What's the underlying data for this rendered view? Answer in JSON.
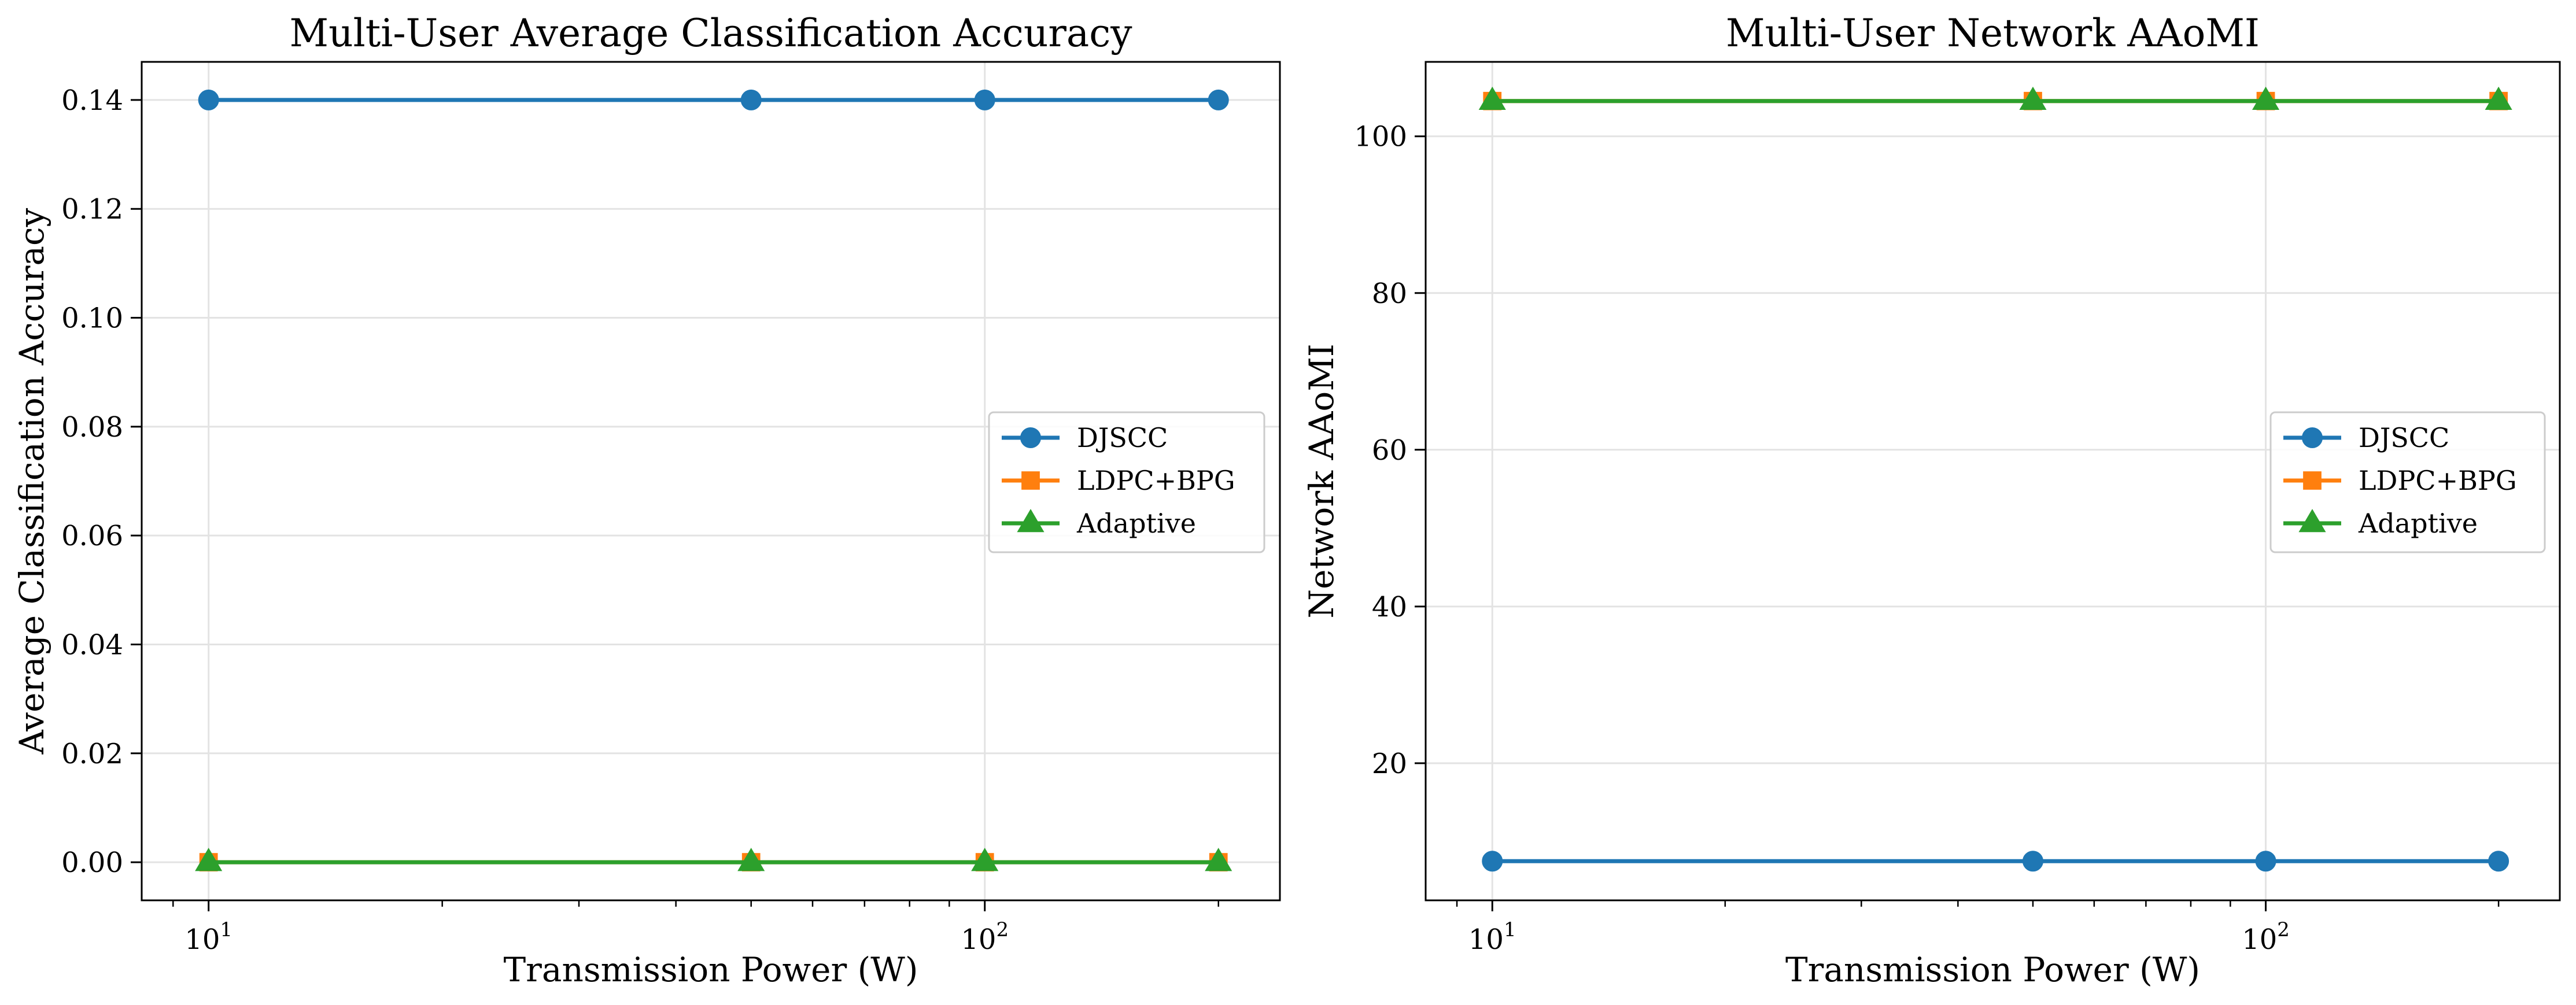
{
  "chart_data": [
    {
      "type": "line",
      "title": "Multi-User Average Classification Accuracy",
      "xlabel": "Transmission Power (W)",
      "ylabel": "Average Classification Accuracy",
      "xscale": "log",
      "xlim": [
        8.2,
        240
      ],
      "ylim": [
        -0.007,
        0.147
      ],
      "xticks": [
        {
          "value": 10,
          "label": "10",
          "exp": "1"
        },
        {
          "value": 100,
          "label": "10",
          "exp": "2"
        }
      ],
      "yticks": [
        {
          "value": 0.0,
          "label": "0.00"
        },
        {
          "value": 0.02,
          "label": "0.02"
        },
        {
          "value": 0.04,
          "label": "0.04"
        },
        {
          "value": 0.06,
          "label": "0.06"
        },
        {
          "value": 0.08,
          "label": "0.08"
        },
        {
          "value": 0.1,
          "label": "0.10"
        },
        {
          "value": 0.12,
          "label": "0.12"
        },
        {
          "value": 0.14,
          "label": "0.14"
        }
      ],
      "grid": true,
      "legend_position": "center-right",
      "x": [
        10,
        50,
        100,
        200
      ],
      "series": [
        {
          "name": "DJSCC",
          "values": [
            0.14,
            0.14,
            0.14,
            0.14
          ],
          "color": "#1f77b4",
          "marker": "circle"
        },
        {
          "name": "LDPC+BPG",
          "values": [
            0.0,
            0.0,
            0.0,
            0.0
          ],
          "color": "#ff7f0e",
          "marker": "square"
        },
        {
          "name": "Adaptive",
          "values": [
            0.0,
            0.0,
            0.0,
            0.0
          ],
          "color": "#2ca02c",
          "marker": "triangle"
        }
      ]
    },
    {
      "type": "line",
      "title": "Multi-User Network AAoMI",
      "xlabel": "Transmission Power (W)",
      "ylabel": "Network AAoMI",
      "xscale": "log",
      "xlim": [
        8.2,
        240
      ],
      "ylim": [
        2.5,
        109.5
      ],
      "xticks": [
        {
          "value": 10,
          "label": "10",
          "exp": "1"
        },
        {
          "value": 100,
          "label": "10",
          "exp": "2"
        }
      ],
      "yticks": [
        {
          "value": 20,
          "label": "20"
        },
        {
          "value": 40,
          "label": "40"
        },
        {
          "value": 60,
          "label": "60"
        },
        {
          "value": 80,
          "label": "80"
        },
        {
          "value": 100,
          "label": "100"
        }
      ],
      "grid": true,
      "legend_position": "center-right",
      "x": [
        10,
        50,
        100,
        200
      ],
      "series": [
        {
          "name": "DJSCC",
          "values": [
            7.5,
            7.5,
            7.5,
            7.5
          ],
          "color": "#1f77b4",
          "marker": "circle"
        },
        {
          "name": "LDPC+BPG",
          "values": [
            104.5,
            104.5,
            104.5,
            104.5
          ],
          "color": "#ff7f0e",
          "marker": "square"
        },
        {
          "name": "Adaptive",
          "values": [
            104.5,
            104.5,
            104.5,
            104.5
          ],
          "color": "#2ca02c",
          "marker": "triangle"
        }
      ]
    }
  ]
}
